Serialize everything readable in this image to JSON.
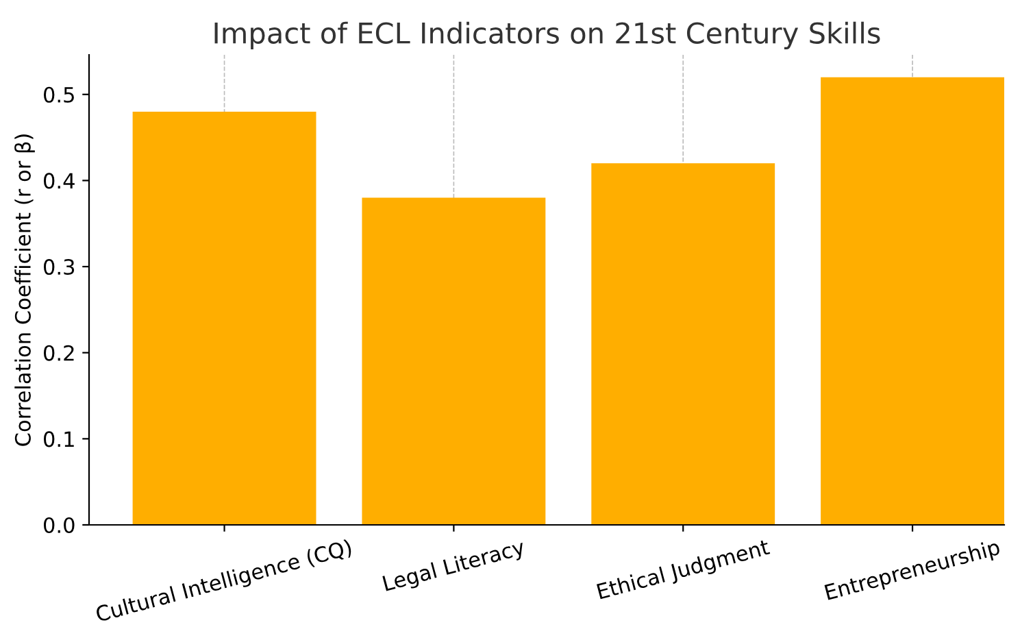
{
  "chart_data": {
    "type": "bar",
    "title": "Impact of ECL Indicators on 21st Century Skills",
    "ylabel": "Correlation Coefficient (r or β)",
    "categories": [
      "Cultural Intelligence (CQ)",
      "Legal Literacy",
      "Ethical Judgment",
      "Entrepreneurship"
    ],
    "values": [
      0.48,
      0.38,
      0.42,
      0.52
    ],
    "color": "#ffae00",
    "ylim": [
      0,
      0.546
    ],
    "yticks": [
      {
        "value": 0,
        "label": "0.0"
      },
      0.1,
      0.2,
      0.3,
      0.4,
      0.5
    ],
    "grid": "x"
  }
}
